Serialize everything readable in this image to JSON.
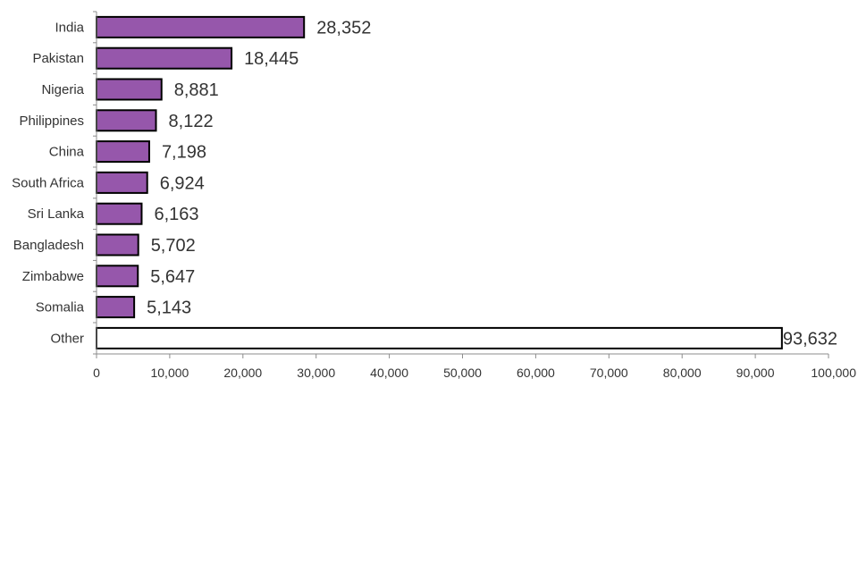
{
  "chart_data": {
    "type": "bar",
    "orientation": "horizontal",
    "categories": [
      "India",
      "Pakistan",
      "Nigeria",
      "Philippines",
      "China",
      "South Africa",
      "Sri Lanka",
      "Bangladesh",
      "Zimbabwe",
      "Somalia",
      "Other"
    ],
    "values": [
      28352,
      18445,
      8881,
      8122,
      7198,
      6924,
      6163,
      5702,
      5647,
      5143,
      93632
    ],
    "value_labels": [
      "28,352",
      "18,445",
      "8,881",
      "8,122",
      "7,198",
      "6,924",
      "6,163",
      "5,702",
      "5,647",
      "5,143",
      "93,632"
    ],
    "xlim": [
      0,
      100000
    ],
    "xticks": [
      0,
      10000,
      20000,
      30000,
      40000,
      50000,
      60000,
      70000,
      80000,
      90000,
      100000
    ],
    "xtick_labels": [
      "0",
      "10,000",
      "20,000",
      "30,000",
      "40,000",
      "50,000",
      "60,000",
      "70,000",
      "80,000",
      "90,000",
      "100,000"
    ],
    "title": "",
    "xlabel": "",
    "ylabel": "",
    "grid": false,
    "legend": "none",
    "colors": {
      "bar_fill": "#9657ab",
      "other_fill": "#ffffff",
      "bar_stroke": "#000000",
      "axis": "#8c8c8c",
      "text": "#333333"
    }
  }
}
